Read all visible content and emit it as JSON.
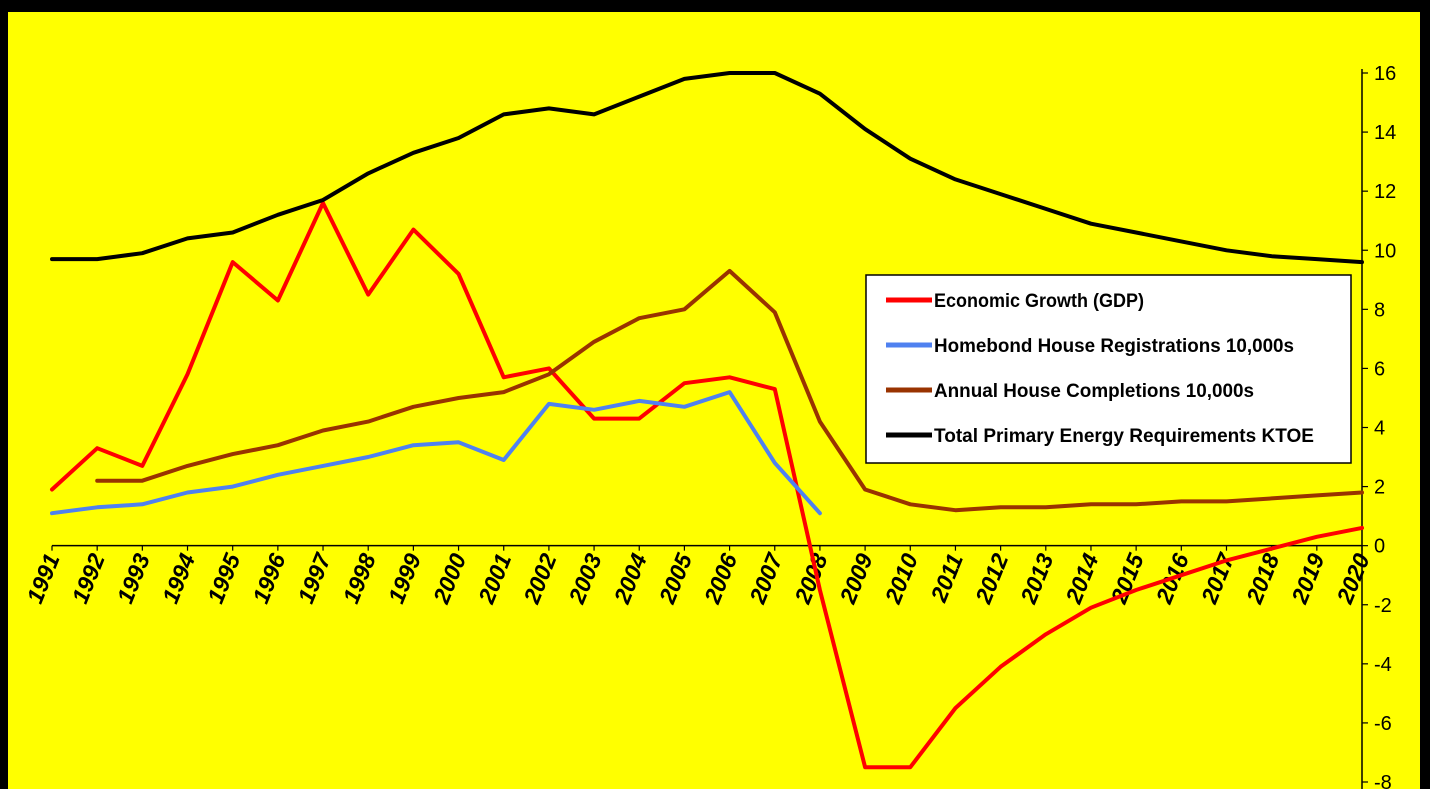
{
  "chart_data": {
    "type": "line",
    "title": "",
    "xlabel": "",
    "ylabel": "",
    "x": [
      "1991",
      "1992",
      "1993",
      "1994",
      "1995",
      "1996",
      "1997",
      "1998",
      "1999",
      "2000",
      "2001",
      "2002",
      "2003",
      "2004",
      "2005",
      "2006",
      "2007",
      "2008",
      "2009",
      "2010",
      "2011",
      "2012",
      "2013",
      "2014",
      "2015",
      "2016",
      "2017",
      "2018",
      "2019",
      "2020"
    ],
    "ylim": [
      -8,
      16
    ],
    "yticks": [
      16,
      14,
      12,
      10,
      8,
      6,
      4,
      2,
      0,
      -2,
      -4,
      -6,
      -8
    ],
    "y_axis_side": "right",
    "grid": false,
    "legend_placement": "right",
    "background_color": "#FFFF00",
    "series": [
      {
        "name": "Economic Growth (GDP)",
        "color": "#FF0000",
        "values": [
          1.9,
          3.3,
          2.7,
          5.8,
          9.6,
          8.3,
          11.6,
          8.5,
          10.7,
          9.2,
          5.7,
          6.0,
          4.3,
          4.3,
          5.5,
          5.7,
          5.3,
          -1.5,
          -7.5,
          -7.5,
          -5.5,
          -4.1,
          -3.0,
          -2.1,
          -1.5,
          -1.0,
          -0.5,
          -0.1,
          0.3,
          0.6
        ]
      },
      {
        "name": "Homebond House Registrations 10,000s",
        "color": "#4F81F0",
        "values": [
          1.1,
          1.3,
          1.4,
          1.8,
          2.0,
          2.4,
          2.7,
          3.0,
          3.4,
          3.5,
          2.9,
          4.8,
          4.6,
          4.9,
          4.7,
          5.2,
          2.8,
          1.1,
          null,
          null,
          null,
          null,
          null,
          null,
          null,
          null,
          null,
          null,
          null,
          null
        ]
      },
      {
        "name": "Annual House Completions 10,000s",
        "color": "#993300",
        "values": [
          null,
          2.2,
          2.2,
          2.7,
          3.1,
          3.4,
          3.9,
          4.2,
          4.7,
          5.0,
          5.2,
          5.8,
          6.9,
          7.7,
          8.0,
          9.3,
          7.9,
          4.2,
          1.9,
          1.4,
          1.2,
          1.3,
          1.3,
          1.4,
          1.4,
          1.5,
          1.5,
          1.6,
          1.7,
          1.8
        ]
      },
      {
        "name": "Total Primary Energy Requirements KTOE",
        "color": "#000000",
        "values": [
          9.7,
          9.7,
          9.9,
          10.4,
          10.6,
          11.2,
          11.7,
          12.6,
          13.3,
          13.8,
          14.6,
          14.8,
          14.6,
          15.2,
          15.8,
          16.0,
          16.0,
          15.3,
          14.1,
          13.1,
          12.4,
          11.9,
          11.4,
          10.9,
          10.6,
          10.3,
          10.0,
          9.8,
          9.7,
          9.6
        ]
      }
    ]
  }
}
